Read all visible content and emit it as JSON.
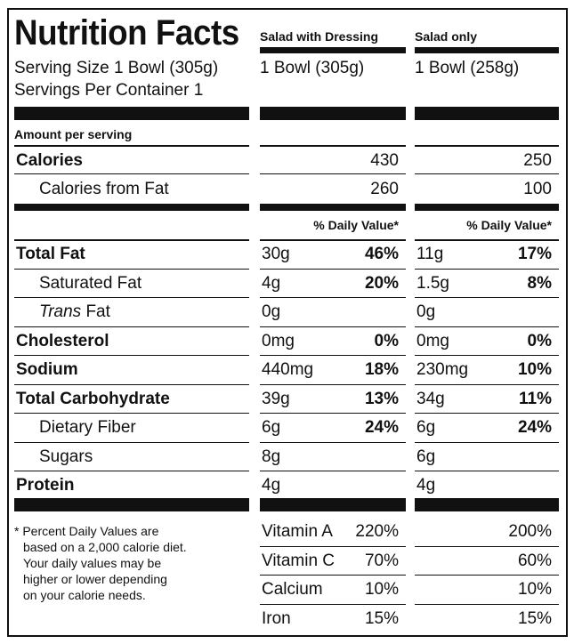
{
  "title": "Nutrition Facts",
  "columns": [
    {
      "header": "Salad with Dressing",
      "serving": "1 Bowl (305g)"
    },
    {
      "header": "Salad only",
      "serving": "1 Bowl (258g)"
    }
  ],
  "serving_size": "Serving Size 1 Bowl (305g)",
  "servings_per_container": "Servings Per Container 1",
  "amount_per_serving": "Amount per serving",
  "calories": {
    "label": "Calories",
    "values": [
      "430",
      "250"
    ]
  },
  "calories_from_fat": {
    "label": "Calories from Fat",
    "values": [
      "260",
      "100"
    ]
  },
  "daily_value_header": "% Daily Value*",
  "nutrients": [
    {
      "label": "Total Fat",
      "bold": true,
      "indent": false,
      "col1": {
        "amt": "30g",
        "dv": "46%"
      },
      "col2": {
        "amt": "11g",
        "dv": "17%"
      }
    },
    {
      "label": "Saturated Fat",
      "bold": false,
      "indent": true,
      "col1": {
        "amt": "4g",
        "dv": "20%"
      },
      "col2": {
        "amt": "1.5g",
        "dv": "8%"
      }
    },
    {
      "label_italic": "Trans",
      "label": " Fat",
      "bold": false,
      "indent": true,
      "col1": {
        "amt": "0g",
        "dv": ""
      },
      "col2": {
        "amt": "0g",
        "dv": ""
      }
    },
    {
      "label": "Cholesterol",
      "bold": true,
      "indent": false,
      "col1": {
        "amt": "0mg",
        "dv": "0%"
      },
      "col2": {
        "amt": "0mg",
        "dv": "0%"
      }
    },
    {
      "label": "Sodium",
      "bold": true,
      "indent": false,
      "col1": {
        "amt": "440mg",
        "dv": "18%"
      },
      "col2": {
        "amt": "230mg",
        "dv": "10%"
      }
    },
    {
      "label": "Total Carbohydrate",
      "bold": true,
      "indent": false,
      "col1": {
        "amt": "39g",
        "dv": "13%"
      },
      "col2": {
        "amt": "34g",
        "dv": "11%"
      }
    },
    {
      "label": "Dietary Fiber",
      "bold": false,
      "indent": true,
      "col1": {
        "amt": "6g",
        "dv": "24%"
      },
      "col2": {
        "amt": "6g",
        "dv": "24%"
      }
    },
    {
      "label": "Sugars",
      "bold": false,
      "indent": true,
      "col1": {
        "amt": "8g",
        "dv": ""
      },
      "col2": {
        "amt": "6g",
        "dv": ""
      }
    },
    {
      "label": "Protein",
      "bold": true,
      "indent": false,
      "col1": {
        "amt": "4g",
        "dv": ""
      },
      "col2": {
        "amt": "4g",
        "dv": ""
      }
    }
  ],
  "footnote": [
    "* Percent Daily Values are",
    "based on a 2,000 calorie diet.",
    "Your daily values may be",
    "higher or lower depending",
    "on your calorie needs."
  ],
  "vitamins": [
    {
      "label": "Vitamin A",
      "col1": "220%",
      "col2": "200%"
    },
    {
      "label": "Vitamin C",
      "col1": "70%",
      "col2": "60%"
    },
    {
      "label": "Calcium",
      "col1": "10%",
      "col2": "10%"
    },
    {
      "label": "Iron",
      "col1": "15%",
      "col2": "15%"
    }
  ]
}
